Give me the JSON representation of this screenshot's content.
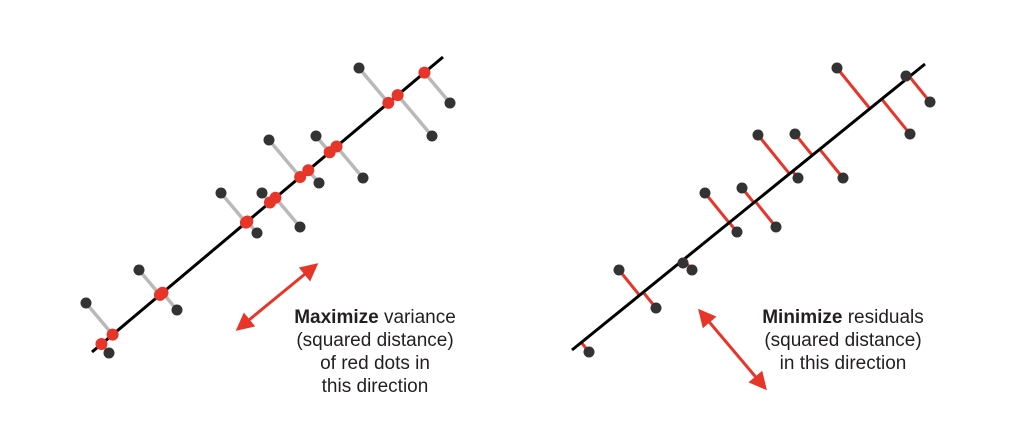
{
  "left_panel": {
    "caption": {
      "bold": "Maximize",
      "rest_line1": " variance",
      "line2": "(squared distance)",
      "line3": "of red dots in",
      "line4": "this direction"
    }
  },
  "right_panel": {
    "caption": {
      "bold": "Minimize",
      "rest_line1": " residuals",
      "line2": "(squared distance)",
      "line3": "in this direction"
    }
  },
  "colors": {
    "line": "#000000",
    "point": "#333333",
    "projection": "#e8352a",
    "projector_left": "#b9b9b9",
    "residual_right": "#e8352a",
    "arrow": "#e8352a"
  }
}
